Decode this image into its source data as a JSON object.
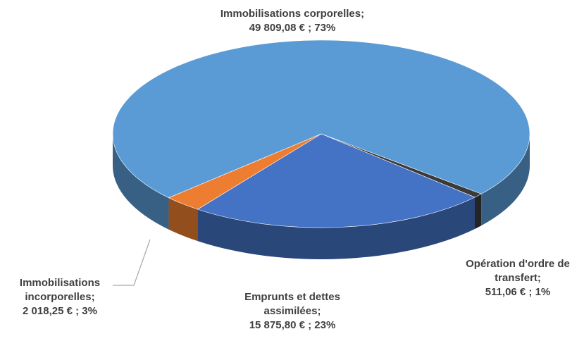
{
  "chart_data": {
    "type": "pie",
    "categories": [
      "Immobilisations corporelles;",
      "Opération d'ordre de transfert;",
      "Emprunts et dettes assimilées;",
      "Immobilisations incorporelles;"
    ],
    "values": [
      49809.08,
      511.06,
      15875.8,
      2018.25
    ],
    "value_labels": [
      "49 809,08 € ; 73%",
      "511,06 € ; 1%",
      "15 875,80 € ; 23%",
      "2 018,25 € ; 3%"
    ],
    "colors": [
      "#5b9bd5",
      "#3a3a3a",
      "#4472c4",
      "#ed7d31"
    ]
  }
}
